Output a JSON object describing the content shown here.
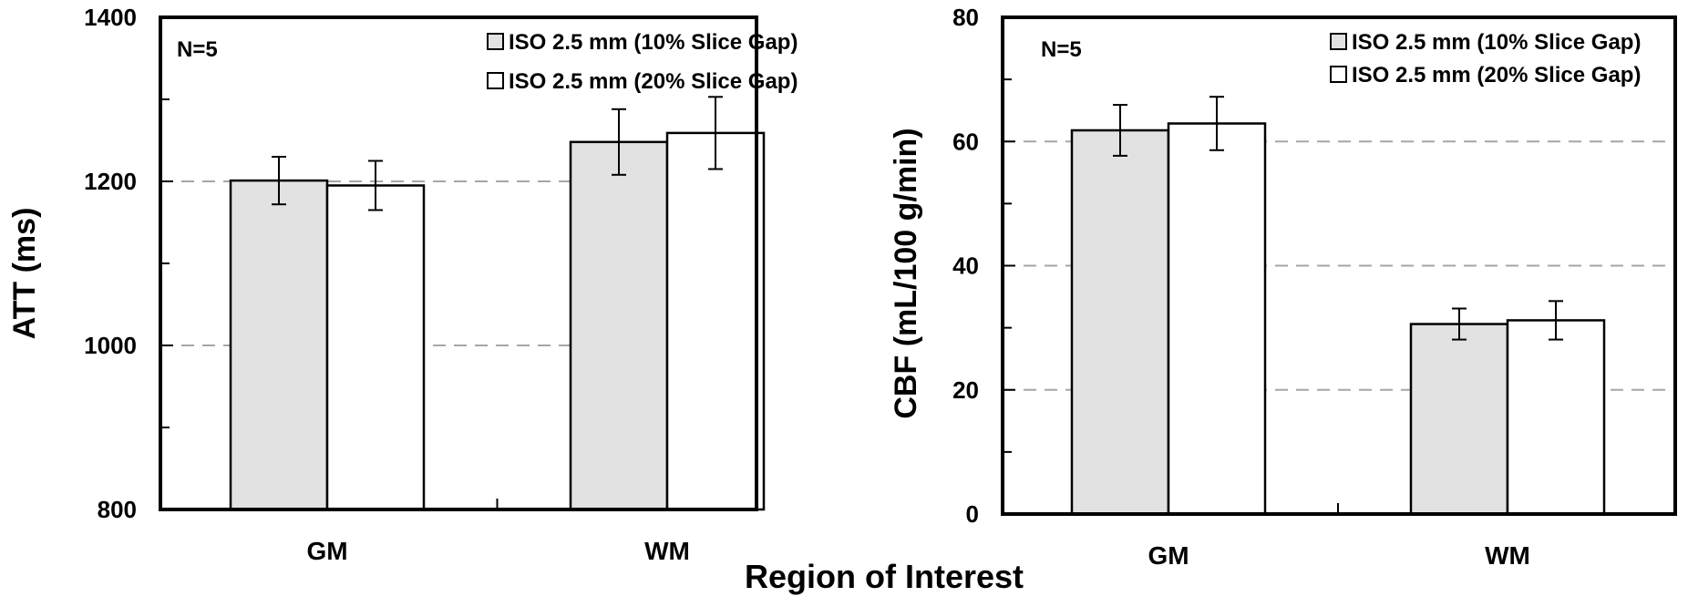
{
  "shared_xlabel": "Region of Interest",
  "colors": {
    "series_1": "#e2e2e2",
    "series_2": "#ffffff",
    "grid": "#a6a6a6",
    "axis": "#000000"
  },
  "chart_data": [
    {
      "type": "bar",
      "annotation": "N=5",
      "categories": [
        "GM",
        "WM"
      ],
      "ylabel": "ATT (ms)",
      "ylim": [
        800,
        1400
      ],
      "yticks": [
        800,
        1000,
        1200,
        1400
      ],
      "gridlines": [
        1000,
        1200
      ],
      "series": [
        {
          "name": "ISO 2.5 mm (10% Slice Gap)",
          "values": [
            1201,
            1248
          ],
          "errors": [
            29,
            40
          ]
        },
        {
          "name": "ISO 2.5 mm (20% Slice Gap)",
          "values": [
            1195,
            1259
          ],
          "errors": [
            30,
            44
          ]
        }
      ]
    },
    {
      "type": "bar",
      "annotation": "N=5",
      "categories": [
        "GM",
        "WM"
      ],
      "ylabel": "CBF (mL/100 g/min)",
      "ylim": [
        0,
        80
      ],
      "yticks": [
        0,
        20,
        40,
        60,
        80
      ],
      "gridlines": [
        20,
        40,
        60
      ],
      "series": [
        {
          "name": "ISO 2.5 mm (10% Slice Gap)",
          "values": [
            61.8,
            30.6
          ],
          "errors": [
            4.1,
            2.5
          ]
        },
        {
          "name": "ISO 2.5 mm (20% Slice Gap)",
          "values": [
            62.9,
            31.2
          ],
          "errors": [
            4.3,
            3.1
          ]
        }
      ]
    }
  ]
}
